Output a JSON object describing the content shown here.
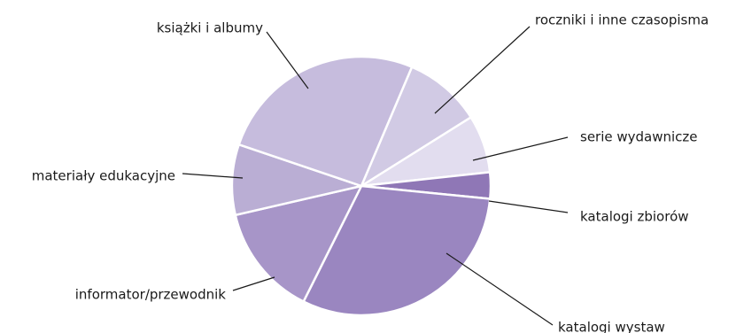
{
  "chart_data": {
    "type": "pie",
    "title": "",
    "start_angle_deg": -67,
    "direction": "clockwise",
    "slices": [
      {
        "label": "roczniki i inne czasopisma",
        "value": 9.7,
        "color": "#d1cae4"
      },
      {
        "label": "serie wydawnicze",
        "value": 7.2,
        "color": "#e2ddef"
      },
      {
        "label": "katalogi zbiorów",
        "value": 3.3,
        "color": "#8f77b6"
      },
      {
        "label": "katalogi wystaw",
        "value": 30.8,
        "color": "#9a86c0"
      },
      {
        "label": "informator/przewodnik",
        "value": 14.0,
        "color": "#a795c8"
      },
      {
        "label": "materiały edukacyjne",
        "value": 8.8,
        "color": "#baaed4"
      },
      {
        "label": "książki i albumy",
        "value": 26.2,
        "color": "#c6bcdd"
      }
    ]
  }
}
